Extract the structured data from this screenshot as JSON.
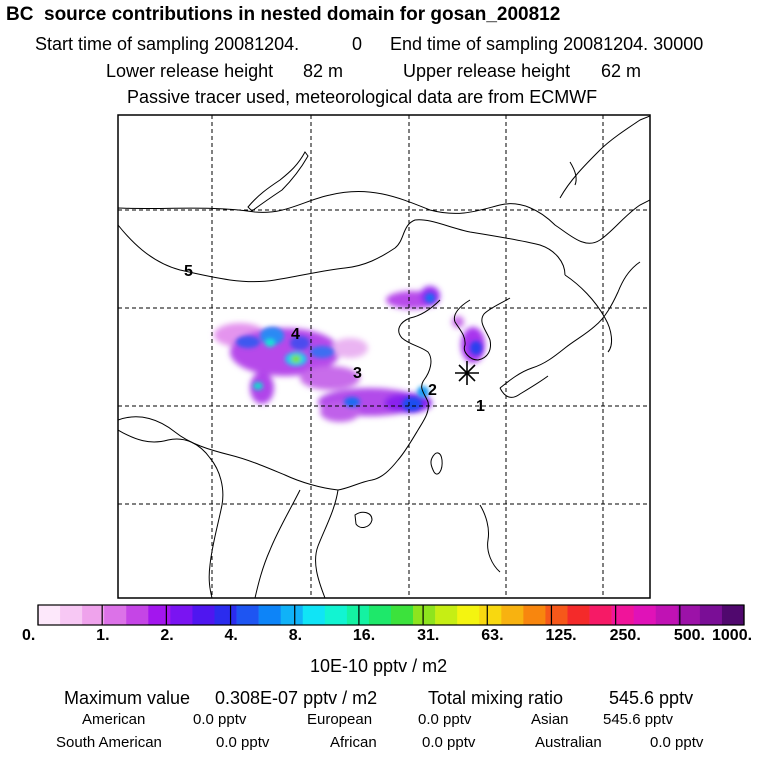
{
  "title": "BC  source contributions in nested domain for gosan_200812",
  "header": {
    "start_label": "Start time of sampling 20081204.",
    "start_val": "0",
    "end_label": "End time of sampling 20081204. 30000",
    "lower_label": "Lower release height",
    "lower_val": "82 m",
    "upper_label": "Upper release height",
    "upper_val": "62 m",
    "tracer_line": "Passive tracer used, meteorological data are from ECMWF"
  },
  "map": {
    "region_markers": [
      "1",
      "2",
      "3",
      "4",
      "5"
    ],
    "receptor_icon": "asterisk-receptor-icon"
  },
  "colorbar": {
    "tick_labels": [
      "0.",
      "1.",
      "2.",
      "4.",
      "8.",
      "16.",
      "31.",
      "63.",
      "125.",
      "250.",
      "500.",
      "1000."
    ],
    "unit": "10E-10 pptv / m2",
    "colors": [
      "#fde8fb",
      "#f7c8f4",
      "#efa3ec",
      "#dc72e8",
      "#c545e6",
      "#a316ee",
      "#7a14f2",
      "#4f16f0",
      "#2b2cee",
      "#1e55f2",
      "#0d84f8",
      "#10b2f8",
      "#10e4f6",
      "#12f4d2",
      "#14f2a2",
      "#1ee86a",
      "#3ce23c",
      "#8ee41e",
      "#c6ee14",
      "#f4f410",
      "#f8d810",
      "#f8b210",
      "#f8860e",
      "#f6581a",
      "#f42a2a",
      "#f61a66",
      "#f0149a",
      "#e012b8",
      "#c012b4",
      "#9c12a8",
      "#7a0e96",
      "#50086e"
    ]
  },
  "footer": {
    "max_label": "Maximum value",
    "max_val": "0.308E-07 pptv / m2",
    "total_label": "Total mixing ratio",
    "total_val": "545.6 pptv",
    "regions": [
      {
        "name": "American",
        "value": "0.0 pptv"
      },
      {
        "name": "European",
        "value": "0.0 pptv"
      },
      {
        "name": "Asian",
        "value": "545.6 pptv"
      },
      {
        "name": "South American",
        "value": "0.0 pptv"
      },
      {
        "name": "African",
        "value": "0.0 pptv"
      },
      {
        "name": "Australian",
        "value": "0.0 pptv"
      }
    ]
  }
}
